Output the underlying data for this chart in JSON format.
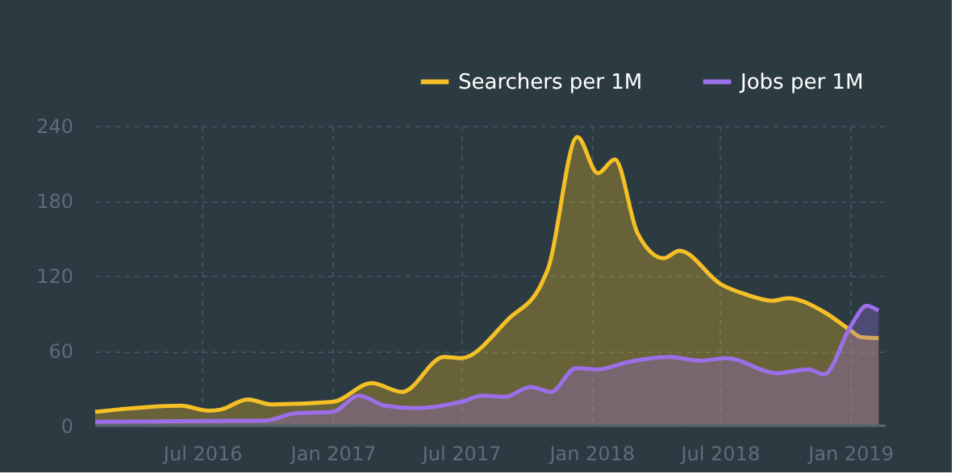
{
  "chart_data": {
    "type": "area",
    "legend": "top right",
    "grid": true,
    "xlim": [
      "2016-02-01",
      "2019-02-20"
    ],
    "xticks": [
      {
        "value": "2016-07-01",
        "label": "Jul 2016"
      },
      {
        "value": "2017-01-01",
        "label": "Jan 2017"
      },
      {
        "value": "2017-07-01",
        "label": "Jul 2017"
      },
      {
        "value": "2018-01-01",
        "label": "Jan 2018"
      },
      {
        "value": "2018-07-01",
        "label": "Jul 2018"
      },
      {
        "value": "2019-01-01",
        "label": "Jan 2019"
      }
    ],
    "ylim": [
      0,
      240
    ],
    "yticks": [
      0,
      60,
      120,
      180,
      240
    ],
    "series": [
      {
        "name": "Searchers per 1M",
        "color": "#f5c026",
        "x": [
          "2016-02-01",
          "2016-06-01",
          "2016-07-10",
          "2016-07-28",
          "2016-09-03",
          "2016-10-07",
          "2017-01-01",
          "2017-02-25",
          "2017-04-09",
          "2017-06-07",
          "2017-07-01",
          "2017-09-07",
          "2017-10-22",
          "2017-11-01",
          "2017-12-12",
          "2018-01-10",
          "2018-02-03",
          "2018-03-07",
          "2018-04-13",
          "2018-05-05",
          "2018-07-03",
          "2018-08-07",
          "2018-09-13",
          "2018-10-05",
          "2018-11-25",
          "2019-01-02",
          "2019-01-15",
          "2019-02-10"
        ],
        "values": [
          11,
          16,
          12,
          13,
          21,
          17,
          19,
          34,
          27,
          55,
          54,
          86,
          113,
          126,
          231,
          202,
          213,
          154,
          134,
          140,
          113,
          105,
          100,
          102,
          91,
          76,
          71,
          70
        ]
      },
      {
        "name": "Jobs per 1M",
        "color": "#9b6fe8",
        "x": [
          "2016-02-01",
          "2016-09-28",
          "2016-11-10",
          "2017-01-01",
          "2017-02-07",
          "2017-03-16",
          "2017-05-01",
          "2017-07-01",
          "2017-08-01",
          "2017-09-01",
          "2017-10-07",
          "2017-11-05",
          "2017-12-10",
          "2018-01-10",
          "2018-02-22",
          "2018-04-20",
          "2018-06-03",
          "2018-07-10",
          "2018-09-20",
          "2018-11-03",
          "2018-11-25",
          "2019-01-02",
          "2019-01-24",
          "2019-02-10"
        ],
        "values": [
          3,
          4,
          10,
          11,
          24,
          16,
          14,
          19,
          24,
          23,
          31,
          27,
          46,
          45,
          51,
          55,
          52,
          54,
          42,
          45,
          41,
          80,
          96,
          92
        ]
      }
    ]
  }
}
